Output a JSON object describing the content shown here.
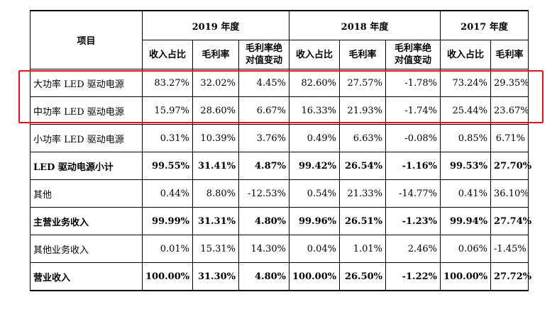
{
  "header": {
    "item": "项目",
    "years": [
      "2019 年度",
      "2018 年度",
      "2017 年度"
    ],
    "sub_2019": [
      "收入占比",
      "毛利率",
      "毛利率绝\n对值变动"
    ],
    "sub_2018": [
      "收入占比",
      "毛利率",
      "毛利率绝\n对值变动"
    ],
    "sub_2017": [
      "收入占比",
      "毛利率"
    ]
  },
  "rows": [
    {
      "label": "大功率 LED 驱动电源",
      "bold": false,
      "values": [
        "83.27%",
        "32.02%",
        "4.45%",
        "82.60%",
        "27.57%",
        "-1.78%",
        "73.24%",
        "29.35%"
      ]
    },
    {
      "label": "中功率 LED 驱动电源",
      "bold": false,
      "values": [
        "15.97%",
        "28.60%",
        "6.67%",
        "16.33%",
        "21.93%",
        "-1.74%",
        "25.44%",
        "23.67%"
      ]
    },
    {
      "label": "小功率 LED 驱动电源",
      "bold": false,
      "values": [
        "0.31%",
        "10.39%",
        "3.76%",
        "0.49%",
        "6.63%",
        "-0.08%",
        "0.85%",
        "6.71%"
      ]
    },
    {
      "label": "LED 驱动电源小计",
      "bold": true,
      "values": [
        "99.55%",
        "31.41%",
        "4.87%",
        "99.42%",
        "26.54%",
        "-1.16%",
        "99.53%",
        "27.70%"
      ]
    },
    {
      "label": "其他",
      "bold": false,
      "values": [
        "0.44%",
        "8.80%",
        "-12.53%",
        "0.54%",
        "21.33%",
        "-14.77%",
        "0.41%",
        "36.10%"
      ]
    },
    {
      "label": "主营业务收入",
      "bold": true,
      "values": [
        "99.99%",
        "31.31%",
        "4.80%",
        "99.96%",
        "26.51%",
        "-1.23%",
        "99.94%",
        "27.74%"
      ]
    },
    {
      "label": "其他业务收入",
      "bold": false,
      "values": [
        "0.01%",
        "15.31%",
        "14.30%",
        "0.04%",
        "1.01%",
        "2.46%",
        "0.06%",
        "-1.45%"
      ]
    },
    {
      "label": "营业收入",
      "bold": true,
      "values": [
        "100.00%",
        "31.30%",
        "4.80%",
        "100.00%",
        "26.50%",
        "-1.22%",
        "100.00%",
        "27.72%"
      ]
    }
  ],
  "highlight_color": "#e0141e"
}
